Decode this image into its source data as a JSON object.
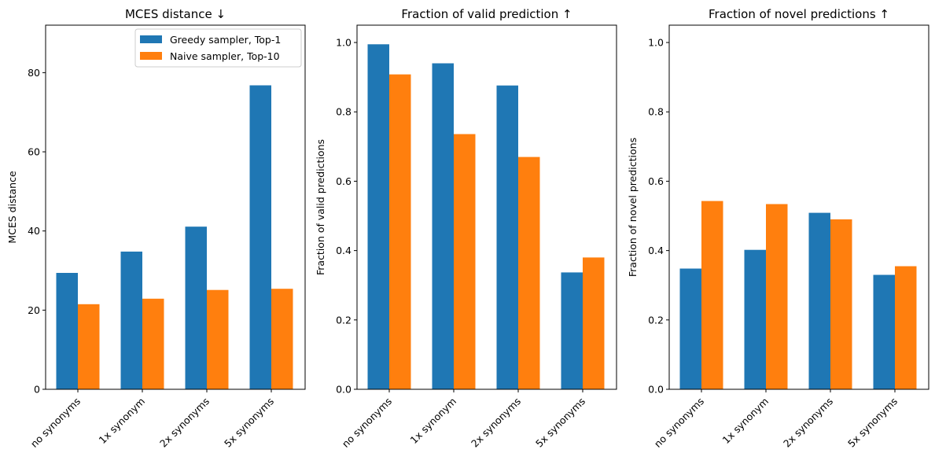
{
  "colors": {
    "greedy": "#1f77b4",
    "naive": "#ff7f0e"
  },
  "legend": [
    {
      "label": "Greedy sampler, Top-1",
      "color": "#1f77b4"
    },
    {
      "label": "Naive sampler, Top-10",
      "color": "#ff7f0e"
    }
  ],
  "chart_data": [
    {
      "type": "bar",
      "title": "MCES distance ↓",
      "ylabel": "MCES distance",
      "xlabel": "",
      "categories": [
        "no synonyms",
        "1x synonym",
        "2x synonyms",
        "5x synonyms"
      ],
      "ylim": [
        0,
        92
      ],
      "yticks": [
        0,
        20,
        40,
        60,
        80
      ],
      "ytick_labels": [
        "0",
        "20",
        "40",
        "60",
        "80"
      ],
      "grid": false,
      "legend_position": "top-right",
      "series": [
        {
          "name": "Greedy sampler, Top-1",
          "values": [
            29.4,
            34.8,
            41.1,
            76.8
          ]
        },
        {
          "name": "Naive sampler, Top-10",
          "values": [
            21.5,
            22.9,
            25.1,
            25.4
          ]
        }
      ]
    },
    {
      "type": "bar",
      "title": "Fraction of valid prediction ↑",
      "ylabel": "Fraction of valid predictions",
      "xlabel": "",
      "categories": [
        "no synonyms",
        "1x synonym",
        "2x synonyms",
        "5x synonyms"
      ],
      "ylim": [
        0,
        1.05
      ],
      "yticks": [
        0,
        0.2,
        0.4,
        0.6,
        0.8,
        1.0
      ],
      "ytick_labels": [
        "0.0",
        "0.2",
        "0.4",
        "0.6",
        "0.8",
        "1.0"
      ],
      "grid": false,
      "series": [
        {
          "name": "Greedy sampler, Top-1",
          "values": [
            0.995,
            0.94,
            0.876,
            0.337
          ]
        },
        {
          "name": "Naive sampler, Top-10",
          "values": [
            0.908,
            0.736,
            0.67,
            0.38
          ]
        }
      ]
    },
    {
      "type": "bar",
      "title": "Fraction of novel predictions ↑",
      "ylabel": "Fraction of novel predictions",
      "xlabel": "",
      "categories": [
        "no synonyms",
        "1x synonym",
        "2x synonyms",
        "5x synonyms"
      ],
      "ylim": [
        0,
        1.05
      ],
      "yticks": [
        0,
        0.2,
        0.4,
        0.6,
        0.8,
        1.0
      ],
      "ytick_labels": [
        "0.0",
        "0.2",
        "0.4",
        "0.6",
        "0.8",
        "1.0"
      ],
      "grid": false,
      "series": [
        {
          "name": "Greedy sampler, Top-1",
          "values": [
            0.348,
            0.402,
            0.509,
            0.33
          ]
        },
        {
          "name": "Naive sampler, Top-10",
          "values": [
            0.543,
            0.534,
            0.49,
            0.355
          ]
        }
      ]
    }
  ]
}
